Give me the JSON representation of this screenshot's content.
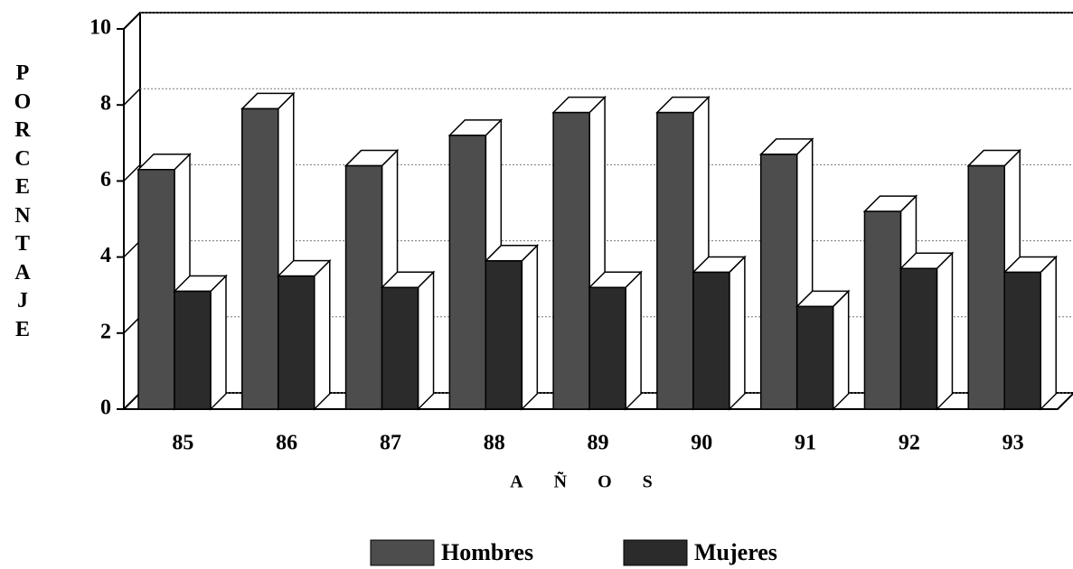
{
  "chart_data": {
    "type": "bar3d",
    "ylabel": "PORCENTAJE",
    "xlabel": "AÑOS",
    "categories": [
      "85",
      "86",
      "87",
      "88",
      "89",
      "90",
      "91",
      "92",
      "93"
    ],
    "series": [
      {
        "name": "Hombres",
        "color": "#4d4d4d",
        "values": [
          6.3,
          7.9,
          6.4,
          7.2,
          7.8,
          7.8,
          6.7,
          5.2,
          6.4
        ]
      },
      {
        "name": "Mujeres",
        "color": "#2b2b2b",
        "values": [
          3.1,
          3.5,
          3.2,
          3.9,
          3.2,
          3.6,
          2.7,
          3.7,
          3.6
        ]
      }
    ],
    "ylim": [
      0,
      10
    ],
    "yticks": [
      0,
      2,
      4,
      6,
      8,
      10
    ],
    "grid": true
  }
}
